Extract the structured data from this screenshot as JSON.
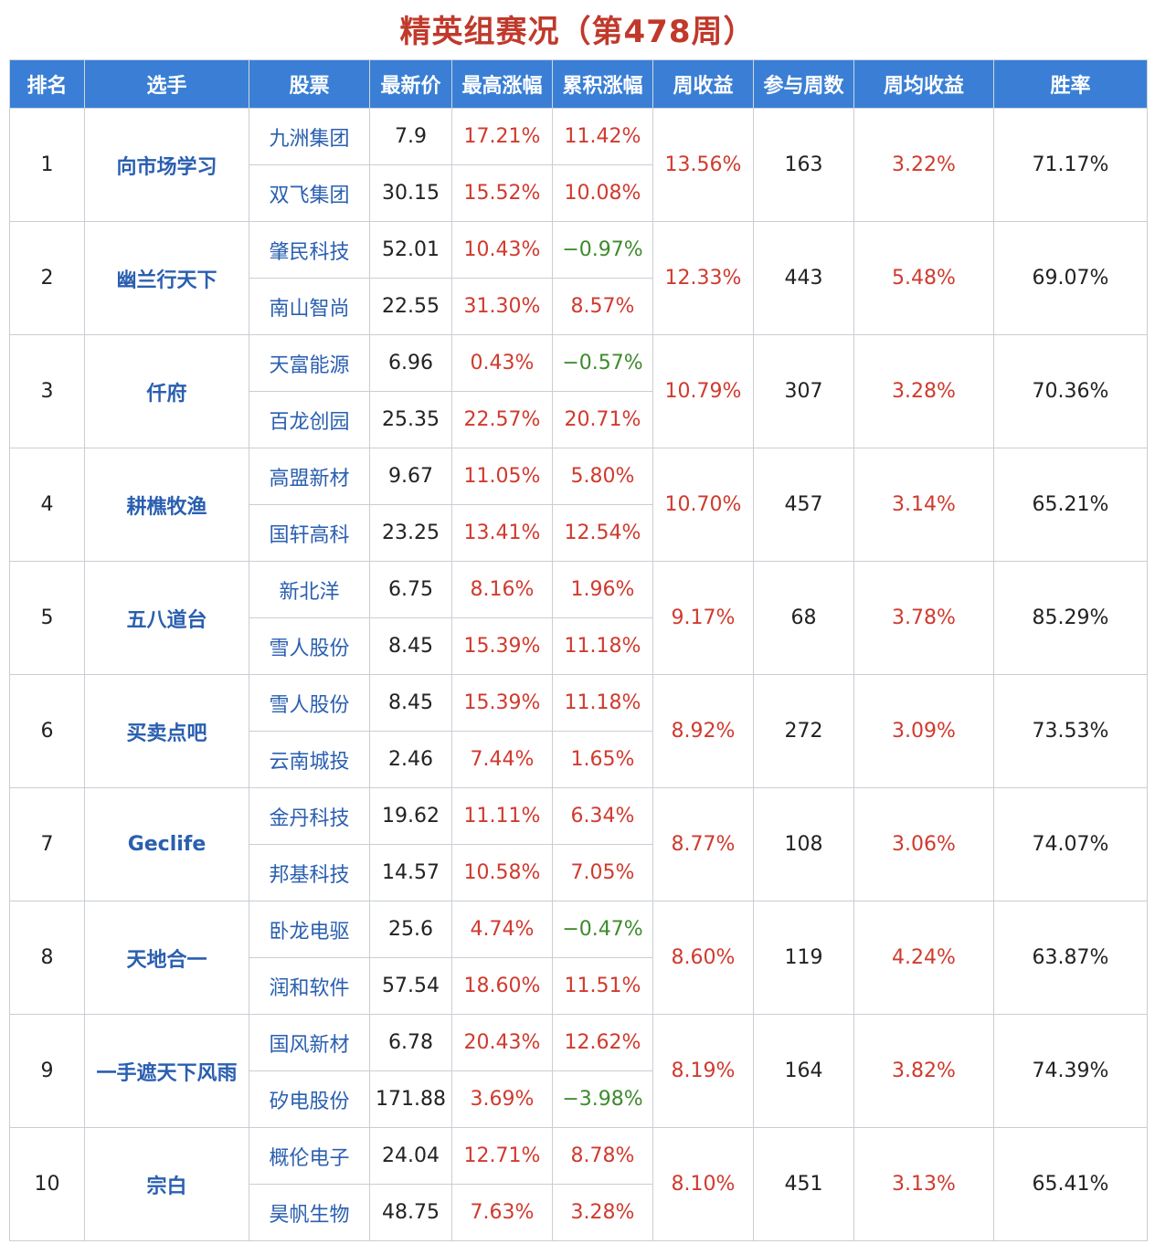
{
  "title": "精英组赛况（第478周）",
  "colors": {
    "header_bg": "#3a7fd5",
    "title": "#c0392b",
    "positive": "#d03a2e",
    "negative": "#3d8b2c",
    "link": "#2a5fb0"
  },
  "headers": [
    "排名",
    "选手",
    "股票",
    "最新价",
    "最高涨幅",
    "累积涨幅",
    "周收益",
    "参与周数",
    "周均收益",
    "胜率"
  ],
  "rows": [
    {
      "rank": "1",
      "player": "向市场学习",
      "weekly_return": "13.56%",
      "weeks": "163",
      "avg_return": "3.22%",
      "win_rate": "71.17%",
      "stocks": [
        {
          "name": "九洲集团",
          "price": "7.9",
          "max_gain": "17.21%",
          "cum_gain": "11.42%"
        },
        {
          "name": "双飞集团",
          "price": "30.15",
          "max_gain": "15.52%",
          "cum_gain": "10.08%"
        }
      ]
    },
    {
      "rank": "2",
      "player": "幽兰行天下",
      "weekly_return": "12.33%",
      "weeks": "443",
      "avg_return": "5.48%",
      "win_rate": "69.07%",
      "stocks": [
        {
          "name": "肇民科技",
          "price": "52.01",
          "max_gain": "10.43%",
          "cum_gain": "−0.97%"
        },
        {
          "name": "南山智尚",
          "price": "22.55",
          "max_gain": "31.30%",
          "cum_gain": "8.57%"
        }
      ]
    },
    {
      "rank": "3",
      "player": "仟府",
      "weekly_return": "10.79%",
      "weeks": "307",
      "avg_return": "3.28%",
      "win_rate": "70.36%",
      "stocks": [
        {
          "name": "天富能源",
          "price": "6.96",
          "max_gain": "0.43%",
          "cum_gain": "−0.57%"
        },
        {
          "name": "百龙创园",
          "price": "25.35",
          "max_gain": "22.57%",
          "cum_gain": "20.71%"
        }
      ]
    },
    {
      "rank": "4",
      "player": "耕樵牧渔",
      "weekly_return": "10.70%",
      "weeks": "457",
      "avg_return": "3.14%",
      "win_rate": "65.21%",
      "stocks": [
        {
          "name": "高盟新材",
          "price": "9.67",
          "max_gain": "11.05%",
          "cum_gain": "5.80%"
        },
        {
          "name": "国轩高科",
          "price": "23.25",
          "max_gain": "13.41%",
          "cum_gain": "12.54%"
        }
      ]
    },
    {
      "rank": "5",
      "player": "五八道台",
      "weekly_return": "9.17%",
      "weeks": "68",
      "avg_return": "3.78%",
      "win_rate": "85.29%",
      "stocks": [
        {
          "name": "新北洋",
          "price": "6.75",
          "max_gain": "8.16%",
          "cum_gain": "1.96%"
        },
        {
          "name": "雪人股份",
          "price": "8.45",
          "max_gain": "15.39%",
          "cum_gain": "11.18%"
        }
      ]
    },
    {
      "rank": "6",
      "player": "买卖点吧",
      "weekly_return": "8.92%",
      "weeks": "272",
      "avg_return": "3.09%",
      "win_rate": "73.53%",
      "stocks": [
        {
          "name": "雪人股份",
          "price": "8.45",
          "max_gain": "15.39%",
          "cum_gain": "11.18%"
        },
        {
          "name": "云南城投",
          "price": "2.46",
          "max_gain": "7.44%",
          "cum_gain": "1.65%"
        }
      ]
    },
    {
      "rank": "7",
      "player": "Geclife",
      "weekly_return": "8.77%",
      "weeks": "108",
      "avg_return": "3.06%",
      "win_rate": "74.07%",
      "stocks": [
        {
          "name": "金丹科技",
          "price": "19.62",
          "max_gain": "11.11%",
          "cum_gain": "6.34%"
        },
        {
          "name": "邦基科技",
          "price": "14.57",
          "max_gain": "10.58%",
          "cum_gain": "7.05%"
        }
      ]
    },
    {
      "rank": "8",
      "player": "天地合一",
      "weekly_return": "8.60%",
      "weeks": "119",
      "avg_return": "4.24%",
      "win_rate": "63.87%",
      "stocks": [
        {
          "name": "卧龙电驱",
          "price": "25.6",
          "max_gain": "4.74%",
          "cum_gain": "−0.47%"
        },
        {
          "name": "润和软件",
          "price": "57.54",
          "max_gain": "18.60%",
          "cum_gain": "11.51%"
        }
      ]
    },
    {
      "rank": "9",
      "player": "一手遮天下风雨",
      "weekly_return": "8.19%",
      "weeks": "164",
      "avg_return": "3.82%",
      "win_rate": "74.39%",
      "stocks": [
        {
          "name": "国风新材",
          "price": "6.78",
          "max_gain": "20.43%",
          "cum_gain": "12.62%"
        },
        {
          "name": "矽电股份",
          "price": "171.88",
          "max_gain": "3.69%",
          "cum_gain": "−3.98%"
        }
      ]
    },
    {
      "rank": "10",
      "player": "宗白",
      "weekly_return": "8.10%",
      "weeks": "451",
      "avg_return": "3.13%",
      "win_rate": "65.41%",
      "stocks": [
        {
          "name": "概伦电子",
          "price": "24.04",
          "max_gain": "12.71%",
          "cum_gain": "8.78%"
        },
        {
          "name": "昊帆生物",
          "price": "48.75",
          "max_gain": "7.63%",
          "cum_gain": "3.28%"
        }
      ]
    }
  ]
}
